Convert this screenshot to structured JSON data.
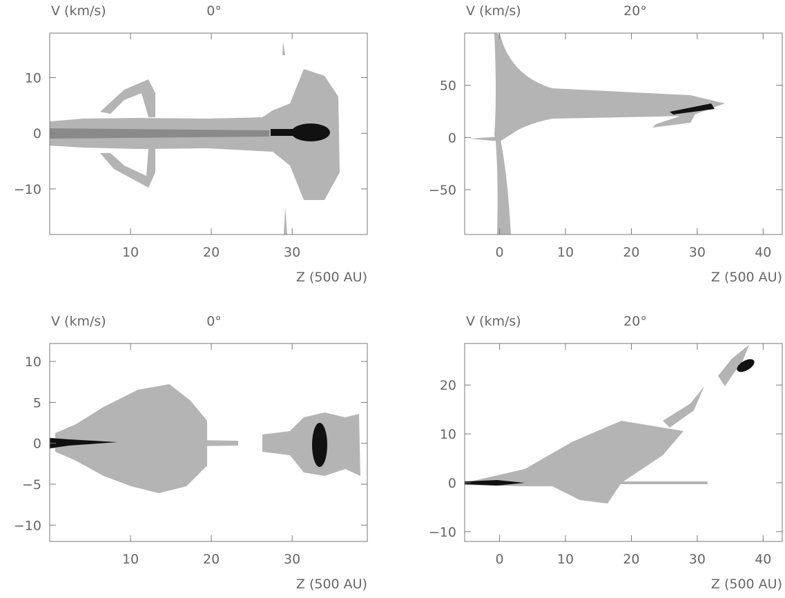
{
  "chart_data": [
    {
      "type": "image",
      "title": "0°",
      "ylabel": "V (km/s)",
      "xlabel": "Z (500 AU)",
      "xlim": [
        0,
        39.3
      ],
      "xticks": [
        10,
        20,
        30
      ],
      "ylim": [
        -18.2,
        18
      ],
      "yticks": [
        {
          "value": -10,
          "label": "−10"
        },
        0,
        10
      ]
    },
    {
      "type": "image",
      "title": "20°",
      "ylabel": "V (km/s)",
      "xlabel": "Z (500 AU)",
      "xlim": [
        -5.3,
        42.9
      ],
      "xticks": [
        0,
        10,
        20,
        30,
        40
      ],
      "ylim": [
        -93,
        100
      ],
      "yticks": [
        {
          "value": -50,
          "label": "−50"
        },
        0,
        50
      ]
    },
    {
      "type": "image",
      "title": "0°",
      "ylabel": "V (km/s)",
      "xlabel": "Z (500 AU)",
      "xlim": [
        0,
        39.3
      ],
      "xticks": [
        10,
        20,
        30
      ],
      "ylim": [
        -12,
        12.2
      ],
      "yticks": [
        {
          "value": -10,
          "label": "−10"
        },
        {
          "value": -5,
          "label": "−5"
        },
        0,
        5,
        10
      ]
    },
    {
      "type": "image",
      "title": "20°",
      "ylabel": "V (km/s)",
      "xlabel": "Z (500 AU)",
      "xlim": [
        -5.3,
        42.9
      ],
      "xticks": [
        0,
        10,
        20,
        30,
        40
      ],
      "ylim": [
        -12,
        28.5
      ],
      "yticks": [
        {
          "value": -10,
          "label": "−10"
        },
        0,
        10,
        20
      ]
    }
  ]
}
